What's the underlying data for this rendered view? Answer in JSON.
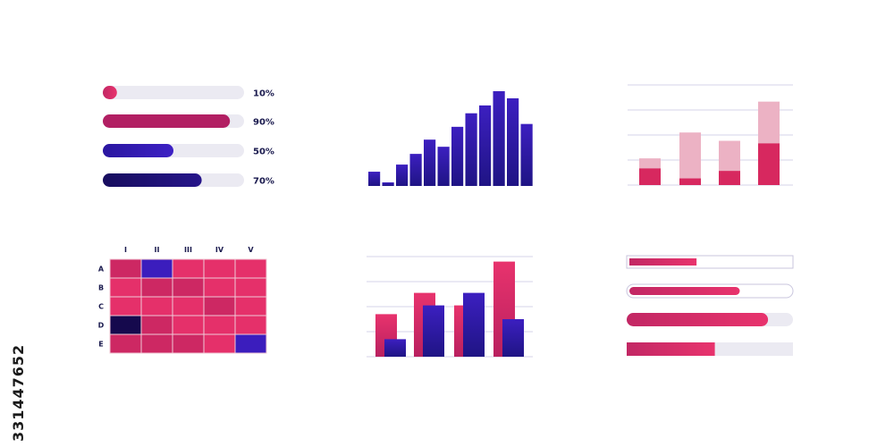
{
  "watermark_id": "331447652",
  "colors": {
    "pink": "#e5306a",
    "pink_dark": "#b21f63",
    "pink_light": "#ecb2c4",
    "blue": "#3b1dbd",
    "navy": "#1e1176",
    "track": "#ebeaf2",
    "grid": "#d6d3ea"
  },
  "chart_data": [
    {
      "type": "bar",
      "orientation": "horizontal",
      "series": [
        {
          "values": [
            10,
            90,
            50,
            70
          ]
        }
      ],
      "labels": [
        "10%",
        "90%",
        "50%",
        "70%"
      ],
      "colors": [
        "#e5306a",
        "#b21f63",
        "#3b1dbd",
        "#1e1176"
      ],
      "xlim": [
        0,
        100
      ]
    },
    {
      "type": "bar",
      "values": [
        2,
        0.5,
        3,
        4.5,
        6.5,
        5.5,
        8.3,
        10.2,
        11.3,
        13.3,
        12.3,
        8.7
      ]
    },
    {
      "type": "bar",
      "stacked": true,
      "series": [
        {
          "values": [
            2,
            0.8,
            1.7,
            5
          ]
        },
        {
          "values": [
            1.2,
            5.5,
            3.6,
            5
          ]
        }
      ],
      "ylim": [
        0,
        12
      ]
    },
    {
      "type": "heatmap",
      "x": [
        "I",
        "II",
        "III",
        "IV",
        "V"
      ],
      "y": [
        "A",
        "B",
        "C",
        "D",
        "E"
      ],
      "cells": [
        [
          "pink-dark",
          "blue",
          "pink",
          "pink",
          "pink"
        ],
        [
          "pink",
          "pink-dark",
          "pink-dark",
          "pink",
          "pink"
        ],
        [
          "pink",
          "pink",
          "pink",
          "pink-dark",
          "pink"
        ],
        [
          "navy",
          "pink-dark",
          "pink",
          "pink",
          "pink"
        ],
        [
          "pink-dark",
          "pink-dark",
          "pink-dark",
          "pink",
          "blue"
        ]
      ]
    },
    {
      "type": "bar",
      "series": [
        {
          "values": [
            3.4,
            5.1,
            4.1,
            7.6
          ]
        },
        {
          "values": [
            1.4,
            4.1,
            5.1,
            3.0
          ]
        }
      ],
      "ylim": [
        0,
        8
      ]
    },
    {
      "type": "bar",
      "orientation": "horizontal",
      "series": [
        {
          "values": [
            42,
            68,
            85,
            53
          ]
        }
      ],
      "xlim": [
        0,
        100
      ]
    }
  ]
}
